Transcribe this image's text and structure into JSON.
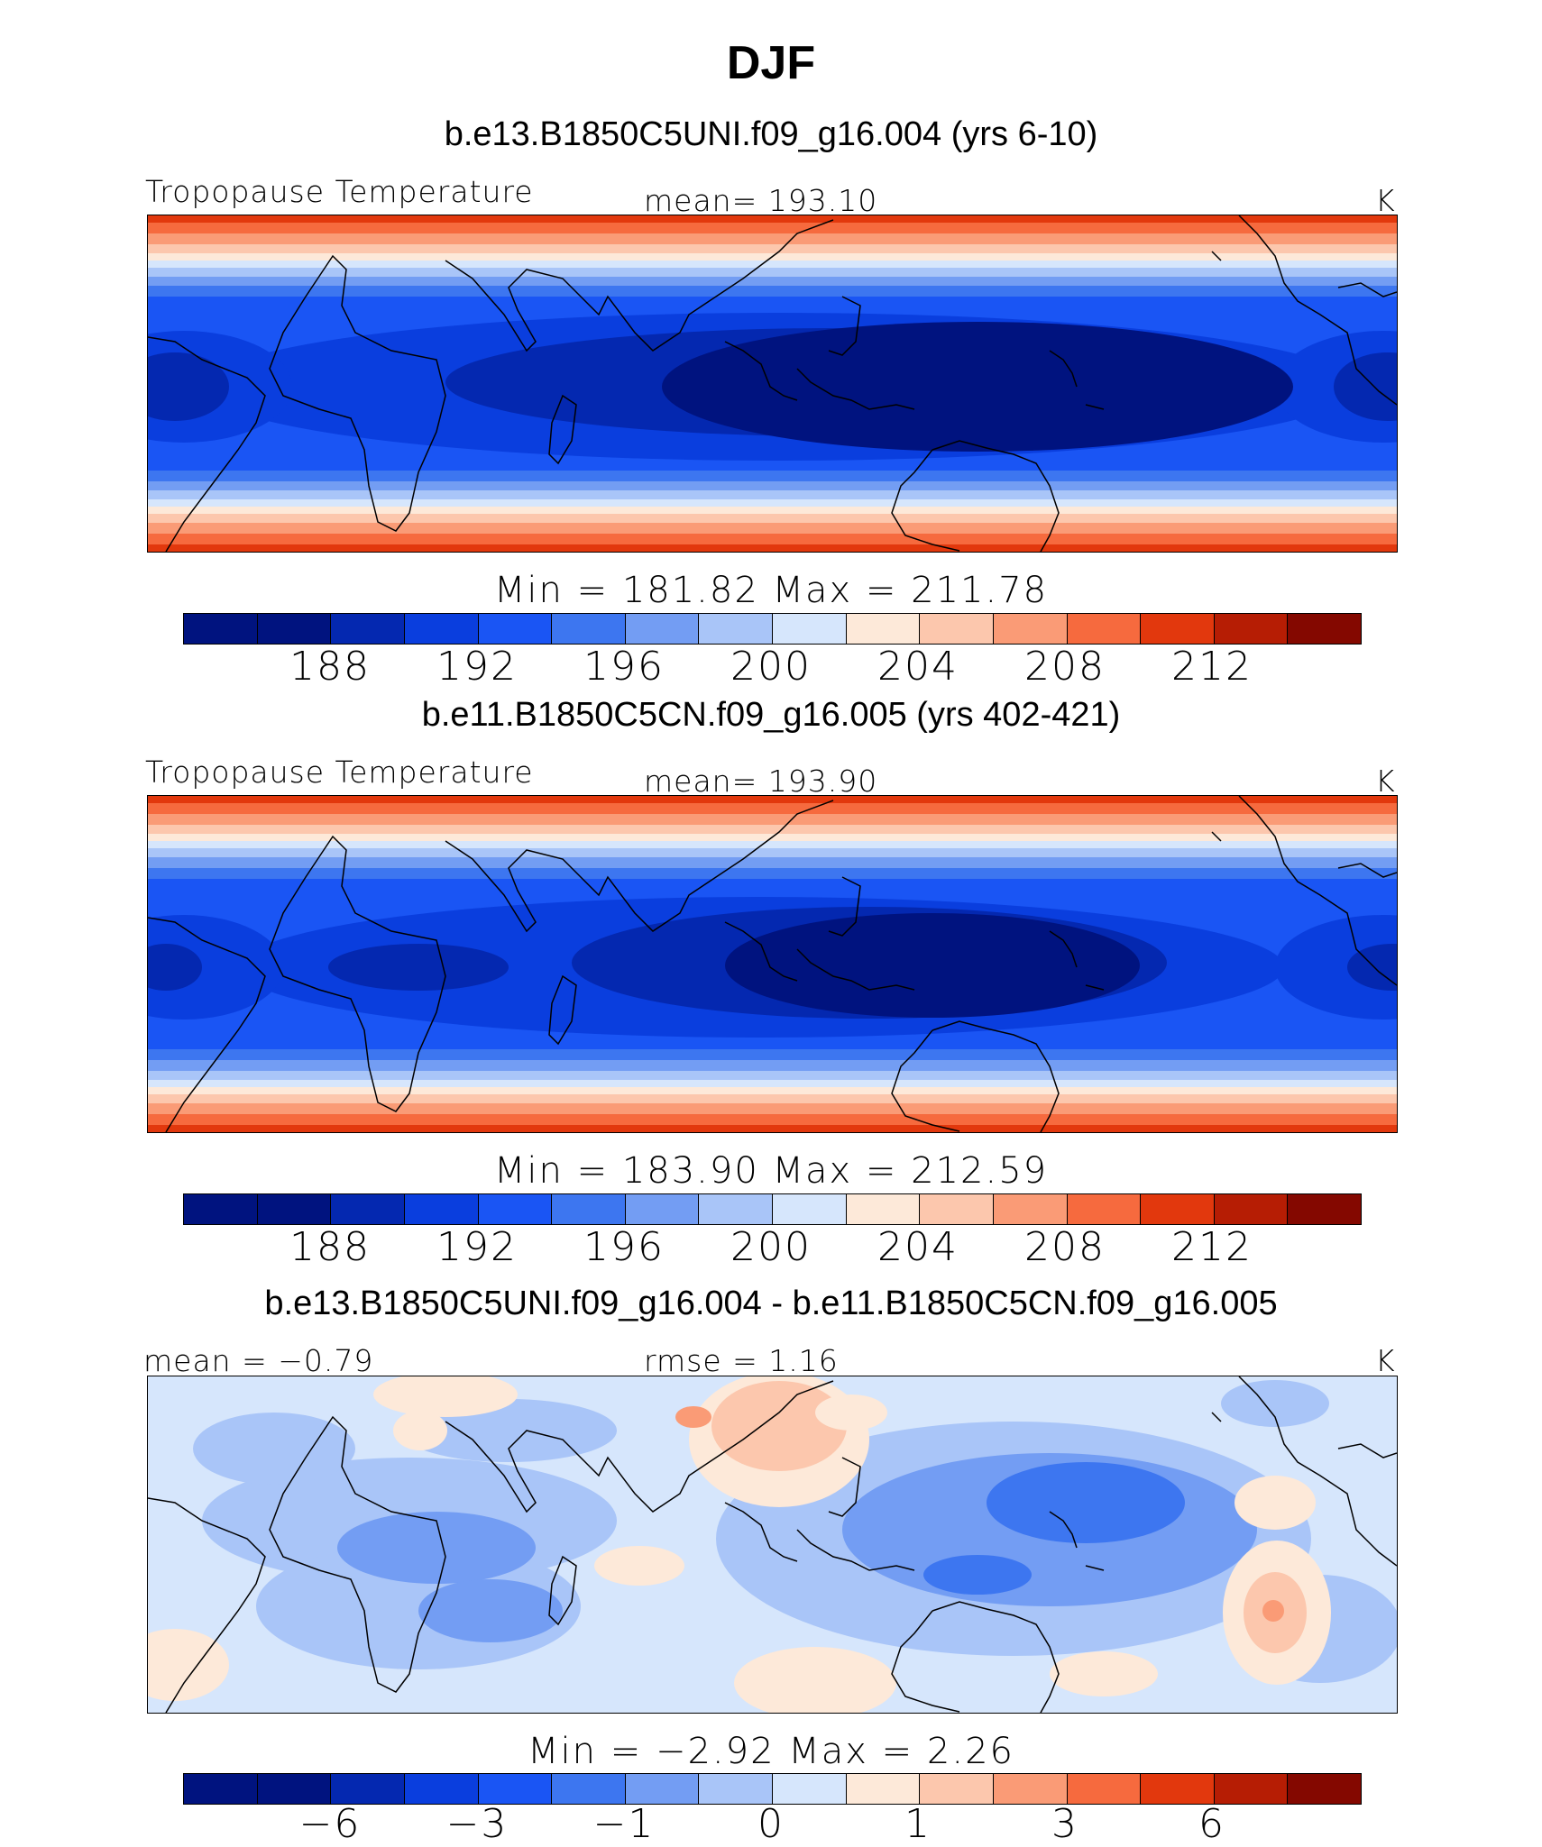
{
  "title": "DJF",
  "colors": {
    "scale": [
      "#00137f",
      "#0428b0",
      "#0a3ede",
      "#1a55f4",
      "#3d76f0",
      "#739df3",
      "#a9c5f8",
      "#d6e6fc",
      "#fde9d9",
      "#fcc7ad",
      "#fa9b76",
      "#f66a3e",
      "#e2380d",
      "#b61d04",
      "#840800"
    ]
  },
  "panels": [
    {
      "title": "b.e13.B1850C5UNI.f09_g16.004 (yrs 6-10)",
      "left_label": "Tropopause Temperature",
      "center_label": "mean= 193.10",
      "units": "K",
      "min_label": "Min",
      "min_value": "181.82",
      "max_label": "Max",
      "max_value": "211.78",
      "ticks": [
        "188",
        "192",
        "196",
        "200",
        "204",
        "208",
        "212"
      ],
      "field": "cold_core"
    },
    {
      "title": "b.e11.B1850C5CN.f09_g16.005 (yrs 402-421)",
      "left_label": "Tropopause Temperature",
      "center_label": "mean= 193.90",
      "units": "K",
      "min_label": "Min",
      "min_value": "183.90",
      "max_label": "Max",
      "max_value": "212.59",
      "ticks": [
        "188",
        "192",
        "196",
        "200",
        "204",
        "208",
        "212"
      ],
      "field": "cold_core"
    },
    {
      "title": "b.e13.B1850C5UNI.f09_g16.004 - b.e11.B1850C5CN.f09_g16.005",
      "left_label": "mean =   −0.79",
      "center_label": "rmse =     1.16",
      "units": "K",
      "min_label": "Min",
      "min_value": "−2.92",
      "max_label": "Max",
      "max_value": "2.26",
      "ticks": [
        "−6",
        "−3",
        "−1",
        "0",
        "1",
        "3",
        "6"
      ],
      "field": "difference"
    }
  ]
}
